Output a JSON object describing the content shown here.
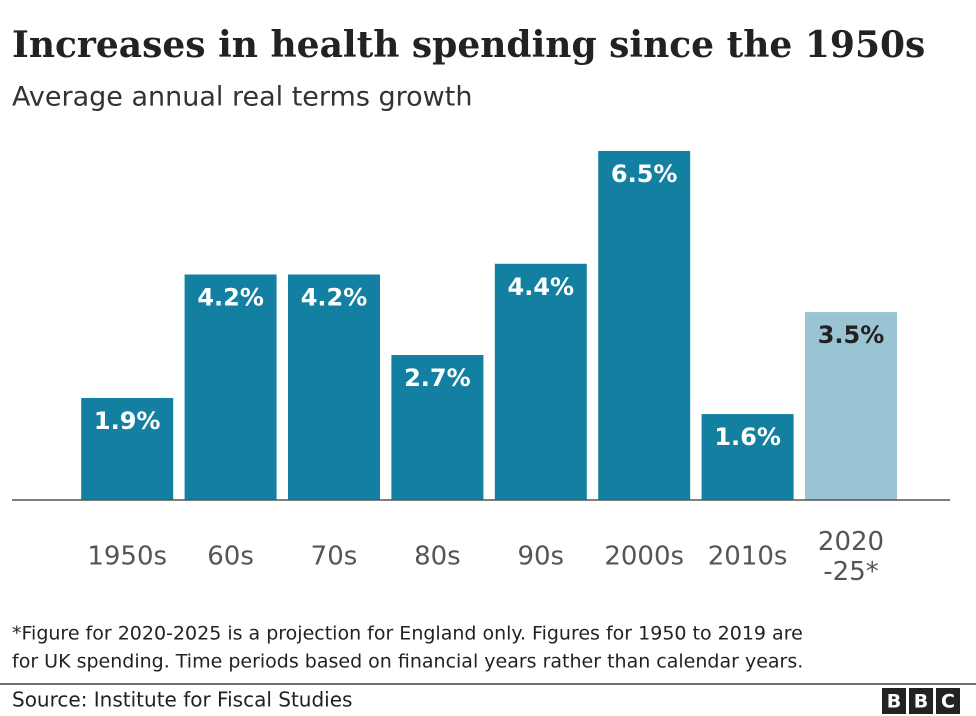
{
  "chart_data": {
    "type": "bar",
    "title": "Increases in health spending since the 1950s",
    "subtitle": "Average annual real terms growth",
    "categories": [
      "1950s",
      "60s",
      "70s",
      "80s",
      "90s",
      "2000s",
      "2010s",
      "2020\n-25*"
    ],
    "values": [
      1.9,
      4.2,
      4.2,
      2.7,
      4.4,
      6.5,
      1.6,
      3.5
    ],
    "value_labels": [
      "1.9%",
      "4.2%",
      "4.2%",
      "2.7%",
      "4.4%",
      "6.5%",
      "1.6%",
      "3.5%"
    ],
    "colors": [
      "#1380a1",
      "#1380a1",
      "#1380a1",
      "#1380a1",
      "#1380a1",
      "#1380a1",
      "#1380a1",
      "#9ac3d4"
    ],
    "footnote": [
      "*Figure for 2020-2025 is a projection for England only. Figures for 1950 to 2019 are",
      "for UK spending. Time periods based on financial years rather than calendar years."
    ],
    "source": "Source: Institute for Fiscal Studies",
    "logo": [
      "B",
      "B",
      "C"
    ]
  }
}
